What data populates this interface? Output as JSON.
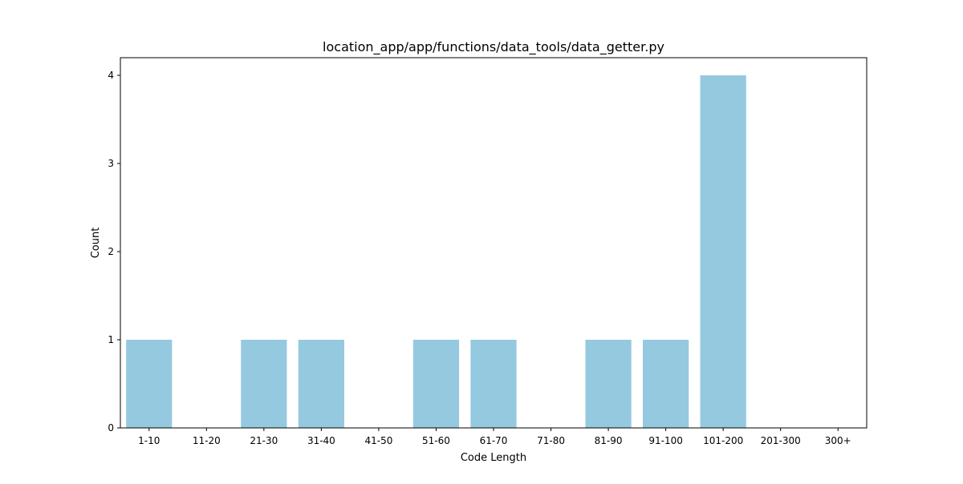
{
  "chart_data": {
    "type": "bar",
    "title": "location_app/app/functions/data_tools/data_getter.py",
    "xlabel": "Code Length",
    "ylabel": "Count",
    "categories": [
      "1-10",
      "11-20",
      "21-30",
      "31-40",
      "41-50",
      "51-60",
      "61-70",
      "71-80",
      "81-90",
      "91-100",
      "101-200",
      "201-300",
      "300+"
    ],
    "values": [
      1,
      0,
      1,
      1,
      0,
      1,
      1,
      0,
      1,
      1,
      4,
      0,
      0
    ],
    "yticks": [
      0,
      1,
      2,
      3,
      4
    ],
    "ylim": [
      0,
      4.2
    ],
    "grid": false,
    "bar_color": "#95c9df"
  }
}
